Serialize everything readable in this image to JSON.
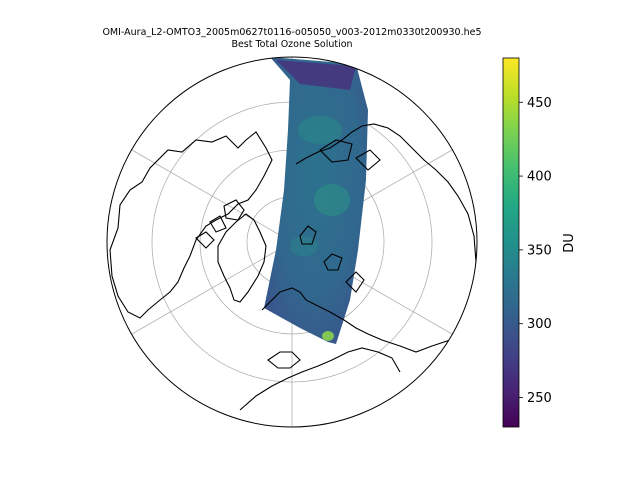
{
  "title": {
    "main": "OMI-Aura_L2-OMTO3_2005m0627t0116-o05050_v003-2012m0330t200930.he5",
    "sub": "Best Total Ozone Solution"
  },
  "map": {
    "projection": "north-polar-stereographic",
    "graticule": "on",
    "coastlines": "on",
    "swath_variable": "Best Total Ozone Solution",
    "swath_typical_value_DU": 320
  },
  "colorbar": {
    "label": "DU",
    "colormap": "viridis",
    "vmin": 230,
    "vmax": 480,
    "ticks": [
      "250",
      "300",
      "350",
      "400",
      "450"
    ],
    "tick_values": [
      250,
      300,
      350,
      400,
      450
    ],
    "color_low": "#440154",
    "color_mid": "#21918c",
    "color_high": "#fde725"
  },
  "colors": {
    "coastline": "#000000",
    "graticule": "#b0b0b0",
    "swath_base": "#31688e"
  }
}
